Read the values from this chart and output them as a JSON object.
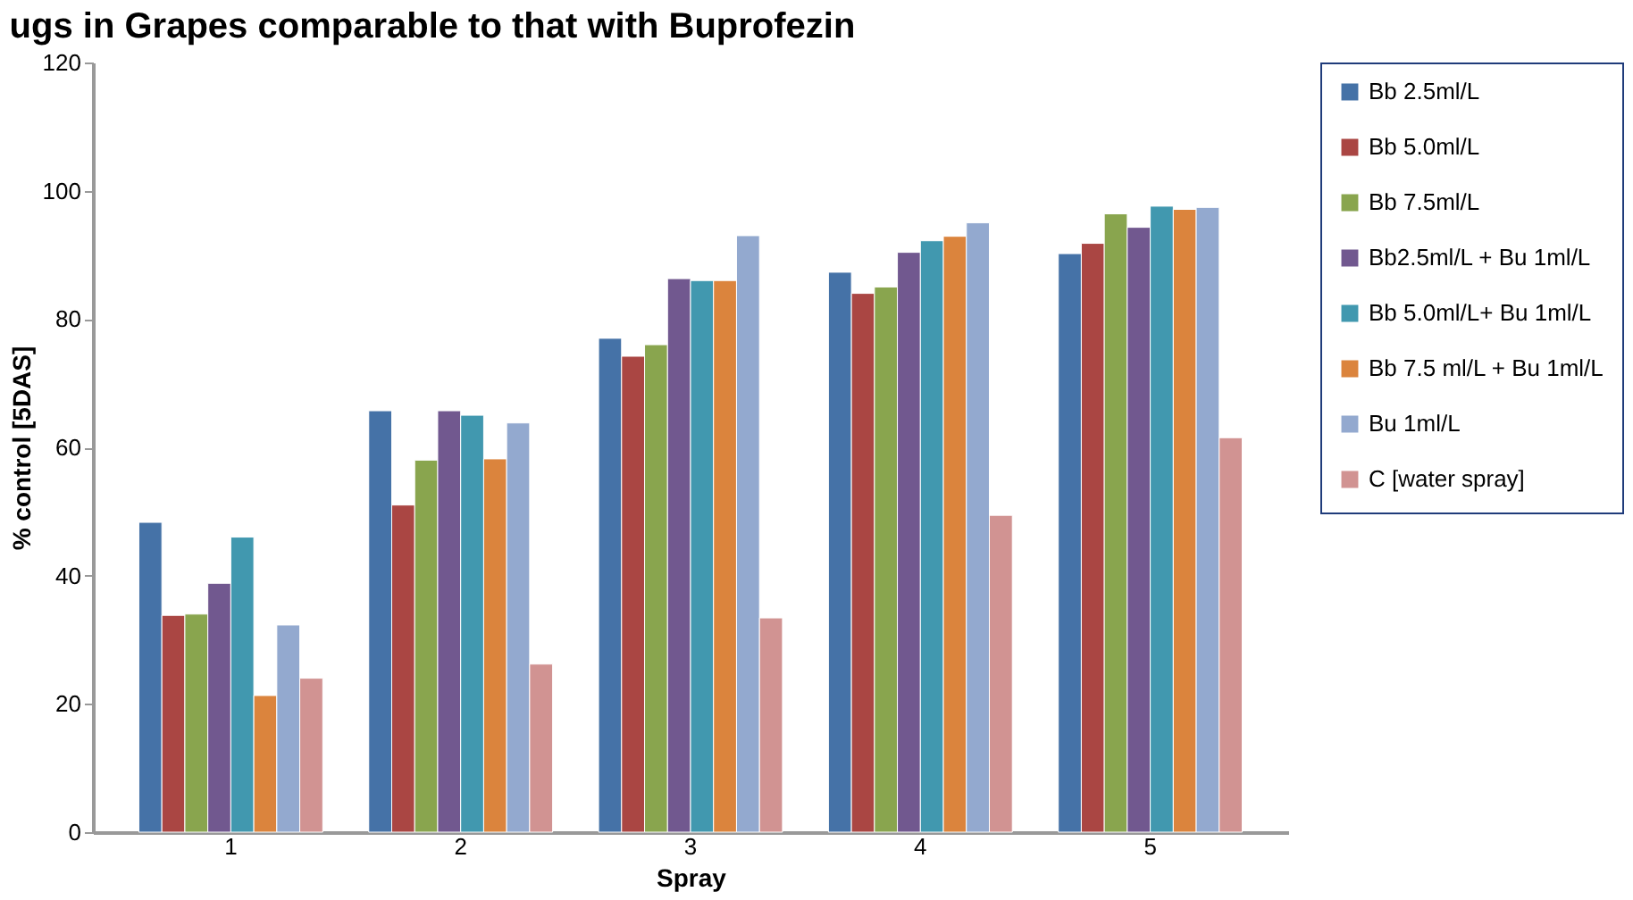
{
  "chart_data": {
    "type": "bar",
    "title": "ugs in Grapes comparable to that with Buprofezin",
    "xlabel": "Spray",
    "ylabel": "% control [5DAS]",
    "categories": [
      "1",
      "2",
      "3",
      "4",
      "5"
    ],
    "series": [
      {
        "name": "Bb 2.5ml/L",
        "color": "#4572a7",
        "values": [
          48.3,
          65.7,
          77,
          87.3,
          90.2
        ]
      },
      {
        "name": "Bb 5.0ml/L",
        "color": "#aa4643",
        "values": [
          33.8,
          51,
          74.2,
          84,
          91.8
        ]
      },
      {
        "name": "Bb 7.5ml/L",
        "color": "#89a54e",
        "values": [
          34,
          58,
          76,
          85,
          96.4
        ]
      },
      {
        "name": "Bb2.5ml/L + Bu 1ml/L",
        "color": "#71588f",
        "values": [
          38.8,
          65.7,
          86.3,
          90.4,
          94.3
        ]
      },
      {
        "name": "Bb 5.0ml/L+ Bu 1ml/L",
        "color": "#4198af",
        "values": [
          46,
          65,
          86,
          92.2,
          97.6
        ]
      },
      {
        "name": "Bb 7.5 ml/L + Bu 1ml/L",
        "color": "#db843d",
        "values": [
          21.3,
          58.2,
          86,
          92.9,
          97.1
        ]
      },
      {
        "name": "Bu 1ml/L",
        "color": "#93a9cf",
        "values": [
          32.3,
          63.8,
          93,
          95,
          97.4
        ]
      },
      {
        "name": "C [water spray]",
        "color": "#d19392",
        "values": [
          24,
          26.2,
          33.4,
          49.4,
          61.5
        ]
      }
    ],
    "ylim": [
      0,
      120
    ],
    "yticks": [
      0,
      20,
      40,
      60,
      80,
      100,
      120
    ],
    "grid": false,
    "legend": "right"
  }
}
